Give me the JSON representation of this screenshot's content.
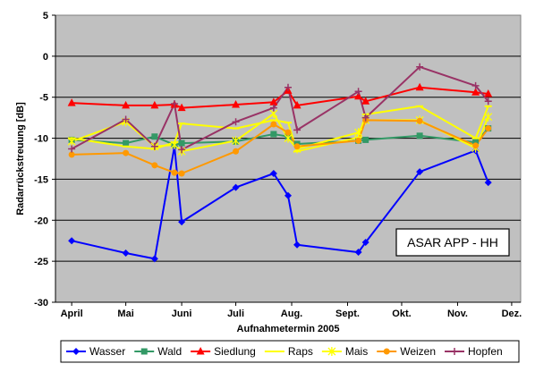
{
  "chart_data": {
    "type": "line",
    "title": "",
    "xlabel": "Aufnahmetermin 2005",
    "ylabel": "Radarrückstreuung [dB]",
    "annotation": "ASAR APP - HH",
    "ylim": [
      -30,
      5
    ],
    "yticks": [
      5,
      0,
      -5,
      -10,
      -15,
      -20,
      -25,
      -30
    ],
    "xlim": [
      91,
      349
    ],
    "xtick_labels": [
      {
        "label": "April",
        "day": 100
      },
      {
        "label": "Mai",
        "day": 130
      },
      {
        "label": "Juni",
        "day": 161
      },
      {
        "label": "Juli",
        "day": 191
      },
      {
        "label": "Aug.",
        "day": 222
      },
      {
        "label": "Sept.",
        "day": 253
      },
      {
        "label": "Okt.",
        "day": 283
      },
      {
        "label": "Nov.",
        "day": 314
      },
      {
        "label": "Dez.",
        "day": 344
      }
    ],
    "grid": "horizontal",
    "plot_background": "#c0c0c0",
    "legend_position": "bottom",
    "series": [
      {
        "name": "Wasser",
        "color": "#0000ff",
        "marker": "diamond",
        "x": [
          100,
          130,
          146,
          157,
          161,
          191,
          212,
          220,
          225,
          259,
          263,
          293,
          324,
          331
        ],
        "y": [
          -22.5,
          -24.0,
          -24.7,
          -11.0,
          -20.2,
          -16.0,
          -14.3,
          -17.0,
          -23.0,
          -23.9,
          -22.7,
          -14.1,
          -11.5,
          -15.4
        ]
      },
      {
        "name": "Wald",
        "color": "#339966",
        "marker": "square",
        "x": [
          100,
          130,
          146,
          157,
          161,
          191,
          212,
          220,
          225,
          259,
          263,
          293,
          324,
          331
        ],
        "y": [
          -10.2,
          -10.6,
          -9.8,
          -10.8,
          -10.6,
          -10.4,
          -9.5,
          -9.8,
          -10.7,
          -10.3,
          -10.2,
          -9.7,
          -10.5,
          -8.8
        ]
      },
      {
        "name": "Siedlung",
        "color": "#ff0000",
        "marker": "triangle",
        "x": [
          100,
          130,
          146,
          157,
          161,
          191,
          212,
          220,
          225,
          259,
          263,
          293,
          324,
          331
        ],
        "y": [
          -5.7,
          -6.0,
          -6.0,
          -5.9,
          -6.3,
          -5.9,
          -5.6,
          -4.2,
          -6.0,
          -4.9,
          -5.5,
          -3.8,
          -4.4,
          -4.6
        ]
      },
      {
        "name": "Raps",
        "color": "#ffff00",
        "marker": "dash",
        "x": [
          100,
          130,
          146,
          157,
          161,
          191,
          212,
          220,
          225,
          259,
          263,
          293,
          324,
          331
        ],
        "y": [
          -10.0,
          -11.0,
          -11.3,
          -10.5,
          -8.2,
          -8.8,
          -7.8,
          -8.1,
          -11.6,
          -9.9,
          -7.1,
          -6.1,
          -10.0,
          -6.1
        ]
      },
      {
        "name": "Mais",
        "color": "#ffff00",
        "marker": "star",
        "x": [
          100,
          130,
          146,
          157,
          161,
          191,
          212,
          220,
          225,
          259,
          263,
          293,
          324,
          331
        ],
        "y": [
          -10.4,
          -8.0,
          -11.0,
          -10.8,
          -11.6,
          -10.3,
          -7.0,
          -10.0,
          -11.3,
          -9.3,
          -7.8,
          -7.8,
          -11.2,
          -7.4
        ]
      },
      {
        "name": "Weizen",
        "color": "#ff9900",
        "marker": "circle",
        "x": [
          100,
          130,
          146,
          157,
          161,
          191,
          212,
          220,
          225,
          259,
          263,
          293,
          324,
          331
        ],
        "y": [
          -12.0,
          -11.8,
          -13.3,
          -14.2,
          -14.3,
          -11.6,
          -8.3,
          -9.3,
          -11.0,
          -10.3,
          -7.8,
          -7.9,
          -10.9,
          -8.8
        ]
      },
      {
        "name": "Hopfen",
        "color": "#993366",
        "marker": "plus",
        "x": [
          100,
          130,
          146,
          157,
          161,
          191,
          212,
          220,
          225,
          259,
          263,
          293,
          324,
          331
        ],
        "y": [
          -11.3,
          -7.7,
          -11.0,
          -5.8,
          -11.4,
          -8.0,
          -6.3,
          -3.8,
          -9.0,
          -4.3,
          -7.5,
          -1.3,
          -3.6,
          -5.5
        ]
      }
    ]
  }
}
